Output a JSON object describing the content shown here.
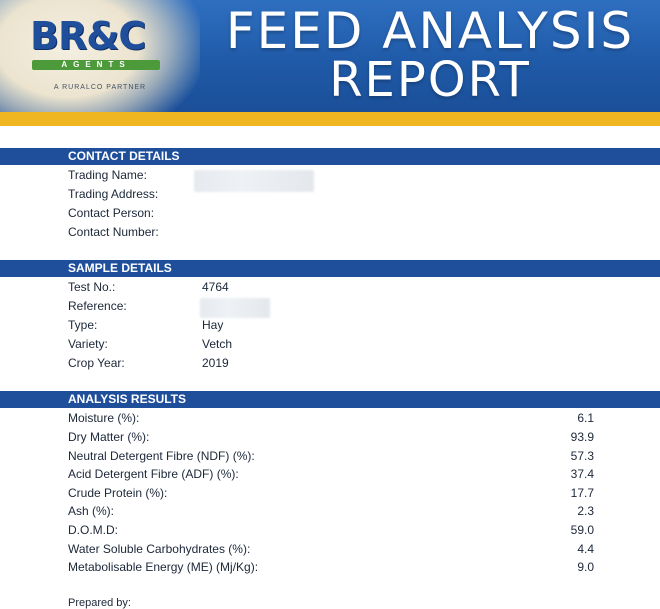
{
  "header": {
    "logo_main": "BR&C",
    "logo_sub": "AGENTS",
    "logo_tag": "A RURALCO PARTNER",
    "title_line1": "FEED ANALYSIS",
    "title_line2": "REPORT"
  },
  "contact": {
    "heading": "CONTACT DETAILS",
    "fields": [
      {
        "label": "Trading Name:",
        "value": ""
      },
      {
        "label": "Trading Address:",
        "value": ""
      },
      {
        "label": "Contact Person:",
        "value": ""
      },
      {
        "label": "Contact Number:",
        "value": ""
      }
    ]
  },
  "sample": {
    "heading": "SAMPLE DETAILS",
    "fields": [
      {
        "label": "Test No.:",
        "value": "4764"
      },
      {
        "label": "Reference:",
        "value": ""
      },
      {
        "label": "Type:",
        "value": "Hay"
      },
      {
        "label": "Variety:",
        "value": "Vetch"
      },
      {
        "label": "Crop Year:",
        "value": "2019"
      }
    ]
  },
  "analysis": {
    "heading": "ANALYSIS RESULTS",
    "rows": [
      {
        "label": "Moisture (%):",
        "value": "6.1"
      },
      {
        "label": "Dry Matter (%):",
        "value": "93.9"
      },
      {
        "label": "Neutral Detergent Fibre (NDF) (%):",
        "value": "57.3"
      },
      {
        "label": "Acid Detergent Fibre (ADF) (%):",
        "value": "37.4"
      },
      {
        "label": "Crude Protein (%):",
        "value": "17.7"
      },
      {
        "label": "Ash (%):",
        "value": "2.3"
      },
      {
        "label": "D.O.M.D:",
        "value": "59.0"
      },
      {
        "label": "Water Soluble Carbohydrates (%):",
        "value": "4.4"
      },
      {
        "label": "Metabolisable Energy (ME) (Mj/Kg):",
        "value": "9.0"
      }
    ]
  },
  "footer": {
    "prepared_by": "Prepared by:"
  },
  "colors": {
    "header_blue": "#1f5aa8",
    "section_blue": "#1f4e9a",
    "gold": "#f0b622",
    "logo_green": "#4d9a3a"
  }
}
